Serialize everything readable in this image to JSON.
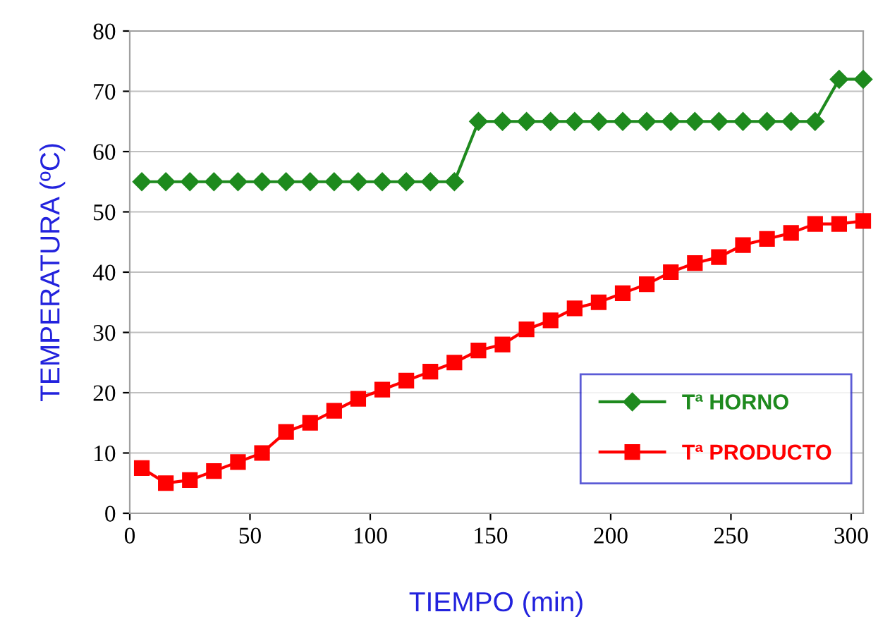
{
  "chart_data": {
    "type": "line",
    "xlabel": "TIEMPO (min)",
    "ylabel": "TEMPERATURA (ºC)",
    "x": [
      5,
      15,
      25,
      35,
      45,
      55,
      65,
      75,
      85,
      95,
      105,
      115,
      125,
      135,
      145,
      155,
      165,
      175,
      185,
      195,
      205,
      215,
      225,
      235,
      245,
      255,
      265,
      275,
      285,
      295,
      305
    ],
    "series": [
      {
        "name": "Tª HORNO",
        "color": "#1e8a1e",
        "marker": "diamond",
        "values": [
          55,
          55,
          55,
          55,
          55,
          55,
          55,
          55,
          55,
          55,
          55,
          55,
          55,
          55,
          65,
          65,
          65,
          65,
          65,
          65,
          65,
          65,
          65,
          65,
          65,
          65,
          65,
          65,
          65,
          72,
          72
        ]
      },
      {
        "name": "Tª PRODUCTO",
        "color": "#ff0000",
        "marker": "square",
        "values": [
          7.5,
          5,
          5.5,
          7,
          8.5,
          10,
          13.5,
          15,
          17,
          19,
          20.5,
          22,
          23.5,
          25,
          27,
          28,
          30.5,
          32,
          34,
          35,
          36.5,
          38,
          40,
          41.5,
          42.5,
          44.5,
          45.5,
          46.5,
          48,
          48,
          48.5
        ]
      }
    ],
    "xlim": [
      0,
      305
    ],
    "ylim": [
      0,
      80
    ],
    "xticks": [
      0,
      50,
      100,
      150,
      200,
      250,
      300
    ],
    "yticks": [
      0,
      10,
      20,
      30,
      40,
      50,
      60,
      70,
      80
    ],
    "grid": "y",
    "legend": "right",
    "line_style": "solid"
  }
}
